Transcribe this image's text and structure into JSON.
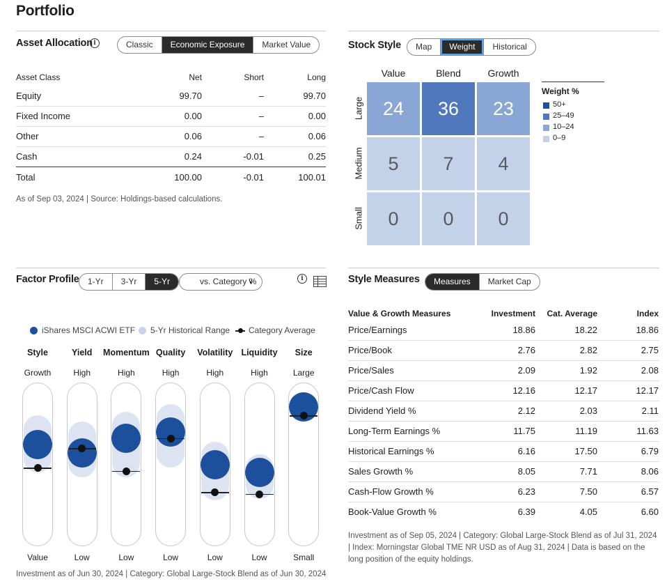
{
  "page_title": "Portfolio",
  "asset_allocation": {
    "title": "Asset Allocation",
    "tabs": [
      "Classic",
      "Economic Exposure",
      "Market Value"
    ],
    "active_tab": 1,
    "headers": [
      "Asset Class",
      "Net",
      "Short",
      "Long"
    ],
    "rows": [
      {
        "name": "Equity",
        "net": "99.70",
        "short": "–",
        "long": "99.70"
      },
      {
        "name": "Fixed Income",
        "net": "0.00",
        "short": "–",
        "long": "0.00"
      },
      {
        "name": "Other",
        "net": "0.06",
        "short": "–",
        "long": "0.06"
      },
      {
        "name": "Cash",
        "net": "0.24",
        "short": "-0.01",
        "long": "0.25"
      }
    ],
    "total": {
      "name": "Total",
      "net": "100.00",
      "short": "-0.01",
      "long": "100.01"
    },
    "footnote": "As of Sep 03, 2024 | Source: Holdings-based calculations."
  },
  "stock_style": {
    "title": "Stock Style",
    "tabs": [
      "Map",
      "Weight",
      "Historical"
    ],
    "active_tab": 1,
    "columns": [
      "Value",
      "Blend",
      "Growth"
    ],
    "rows": [
      "Large",
      "Medium",
      "Small"
    ],
    "values": [
      [
        24,
        36,
        23
      ],
      [
        5,
        7,
        4
      ],
      [
        0,
        0,
        0
      ]
    ],
    "legend_title": "Weight %",
    "legend": [
      {
        "label": "50+",
        "color": "#1c4f9c"
      },
      {
        "label": "25–49",
        "color": "#5079bd"
      },
      {
        "label": "10–24",
        "color": "#8aa6d4"
      },
      {
        "label": "0–9",
        "color": "#c3d2e9"
      }
    ]
  },
  "factor_profile": {
    "title": "Factor Profile",
    "tabs": [
      "1-Yr",
      "3-Yr",
      "5-Yr"
    ],
    "active_tab": 2,
    "dropdown": "vs. Category %",
    "legend": {
      "fund": "iShares MSCI ACWI ETF",
      "range": "5-Yr Historical Range",
      "category": "Category Average"
    },
    "factors": [
      {
        "name": "Style",
        "top": "Growth",
        "bottom": "Value",
        "fund": 0.62,
        "range": [
          0.45,
          0.8
        ],
        "category": 0.48
      },
      {
        "name": "Yield",
        "top": "High",
        "bottom": "Low",
        "fund": 0.57,
        "range": [
          0.42,
          0.76
        ],
        "category": 0.6
      },
      {
        "name": "Momentum",
        "top": "High",
        "bottom": "Low",
        "fund": 0.66,
        "range": [
          0.42,
          0.82
        ],
        "category": 0.46
      },
      {
        "name": "Quality",
        "top": "High",
        "bottom": "Low",
        "fund": 0.7,
        "range": [
          0.48,
          0.87
        ],
        "category": 0.66
      },
      {
        "name": "Volatility",
        "top": "High",
        "bottom": "Low",
        "fund": 0.5,
        "range": [
          0.28,
          0.64
        ],
        "category": 0.33
      },
      {
        "name": "Liquidity",
        "top": "High",
        "bottom": "Low",
        "fund": 0.45,
        "range": [
          0.29,
          0.56
        ],
        "category": 0.32
      },
      {
        "name": "Size",
        "top": "Large",
        "bottom": "Small",
        "fund": 0.85,
        "range": [
          0.77,
          0.93
        ],
        "category": 0.8
      }
    ],
    "footnote": "Investment as of Jun 30, 2024 | Category: Global Large-Stock Blend as of Jun 30, 2024"
  },
  "style_measures": {
    "title": "Style Measures",
    "tabs": [
      "Measures",
      "Market Cap"
    ],
    "active_tab": 0,
    "headers": [
      "Value & Growth Measures",
      "Investment",
      "Cat. Average",
      "Index"
    ],
    "rows": [
      {
        "name": "Price/Earnings",
        "inv": "18.86",
        "cat": "18.22",
        "idx": "18.86"
      },
      {
        "name": "Price/Book",
        "inv": "2.76",
        "cat": "2.82",
        "idx": "2.75"
      },
      {
        "name": "Price/Sales",
        "inv": "2.09",
        "cat": "1.92",
        "idx": "2.08"
      },
      {
        "name": "Price/Cash Flow",
        "inv": "12.16",
        "cat": "12.17",
        "idx": "12.17"
      },
      {
        "name": "Dividend Yield %",
        "inv": "2.12",
        "cat": "2.03",
        "idx": "2.11"
      },
      {
        "name": "Long-Term Earnings %",
        "inv": "11.75",
        "cat": "11.19",
        "idx": "11.63"
      },
      {
        "name": "Historical Earnings %",
        "inv": "6.16",
        "cat": "17.50",
        "idx": "6.79"
      },
      {
        "name": "Sales Growth %",
        "inv": "8.05",
        "cat": "7.71",
        "idx": "8.06"
      },
      {
        "name": "Cash-Flow Growth %",
        "inv": "6.23",
        "cat": "7.50",
        "idx": "6.57"
      },
      {
        "name": "Book-Value Growth %",
        "inv": "6.39",
        "cat": "4.05",
        "idx": "6.60"
      }
    ],
    "footnote_lines": [
      "Investment as of Sep 05, 2024 | Category: Global Large-Stock Blend as of Jul 31, 2024",
      "| Index: Morningstar Global TME NR USD as of Aug 31, 2024 | Data is based on the",
      "long position of the equity holdings."
    ]
  }
}
